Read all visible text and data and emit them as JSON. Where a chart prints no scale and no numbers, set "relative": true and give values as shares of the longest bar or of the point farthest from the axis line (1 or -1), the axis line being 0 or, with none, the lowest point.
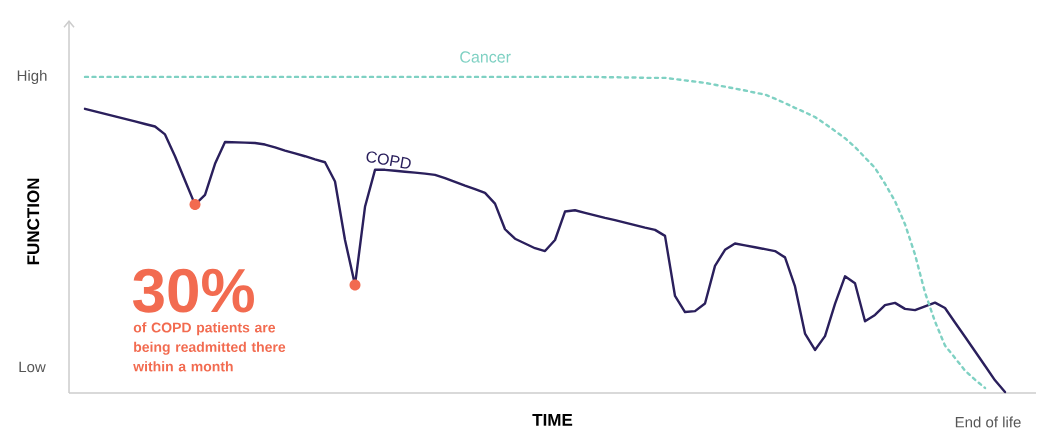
{
  "chart_data": {
    "type": "line",
    "relative": true,
    "xlabel": "TIME",
    "ylabel": "FUNCTION",
    "annotations": [
      "30%",
      "of COPD patients are being readmitted there within a month",
      "High",
      "Low",
      "End of life"
    ],
    "categories": [
      null,
      null,
      null,
      null,
      null,
      null,
      null,
      null,
      null,
      null,
      null,
      null,
      null,
      null,
      null,
      null,
      null,
      null,
      null,
      null,
      null,
      null,
      null,
      null,
      null,
      null,
      null,
      null,
      null,
      null,
      null,
      null,
      null,
      null,
      null,
      null,
      null,
      null,
      null,
      null,
      null,
      null,
      null,
      null,
      null,
      null,
      null,
      null,
      null,
      null,
      null,
      null,
      null,
      null,
      null,
      null,
      null,
      null,
      null,
      null,
      null,
      null,
      null,
      null,
      null,
      null,
      null,
      null,
      null,
      null,
      null,
      null,
      null,
      null,
      null,
      null,
      null,
      null,
      null,
      null,
      null,
      null,
      null,
      null,
      null,
      null,
      null,
      null,
      null,
      null,
      null,
      null,
      null
    ],
    "series": [
      {
        "name": "COPD",
        "color": "#2a1f5c",
        "line_style": "solid",
        "values": [
          0.899,
          0.891,
          0.883,
          0.875,
          0.867,
          0.859,
          0.851,
          0.843,
          0.818,
          0.749,
          0.672,
          0.596,
          0.627,
          0.725,
          0.794,
          0.793,
          0.792,
          0.791,
          0.786,
          0.777,
          0.767,
          0.758,
          0.749,
          0.739,
          0.73,
          0.669,
          0.484,
          0.342,
          0.589,
          0.706,
          0.706,
          0.703,
          0.7,
          0.697,
          0.694,
          0.69,
          0.68,
          0.668,
          0.656,
          0.645,
          0.633,
          0.599,
          0.518,
          0.488,
          0.473,
          0.458,
          0.449,
          0.484,
          0.574,
          0.578,
          0.57,
          0.562,
          0.554,
          0.547,
          0.539,
          0.531,
          0.523,
          0.516,
          0.497,
          0.307,
          0.256,
          0.259,
          0.283,
          0.402,
          0.453,
          0.473,
          0.467,
          0.461,
          0.455,
          0.449,
          0.429,
          0.337,
          0.188,
          0.136,
          0.18,
          0.282,
          0.369,
          0.347,
          0.227,
          0.247,
          0.278,
          0.285,
          0.266,
          0.262,
          0.274,
          0.286,
          0.269,
          0.223,
          0.178,
          0.132,
          0.086,
          0.04,
          0.003
        ]
      },
      {
        "name": "Cancer",
        "color": "#7fd1c3",
        "line_style": "dotted",
        "values": [
          1.0,
          1.0,
          1.0,
          1.0,
          1.0,
          1.0,
          1.0,
          1.0,
          1.0,
          1.0,
          1.0,
          1.0,
          1.0,
          1.0,
          1.0,
          1.0,
          1.0,
          1.0,
          1.0,
          1.0,
          1.0,
          1.0,
          1.0,
          1.0,
          1.0,
          1.0,
          1.0,
          1.0,
          1.0,
          1.0,
          1.0,
          1.0,
          1.0,
          1.0,
          1.0,
          1.0,
          1.0,
          1.0,
          1.0,
          1.0,
          1.0,
          1.0,
          1.0,
          1.0,
          1.0,
          1.0,
          1.0,
          1.0,
          1.0,
          1.0,
          1.0,
          1.0,
          0.999,
          0.999,
          0.998,
          0.998,
          0.997,
          0.997,
          0.997,
          0.993,
          0.989,
          0.985,
          0.981,
          0.975,
          0.969,
          0.963,
          0.957,
          0.95,
          0.944,
          0.931,
          0.917,
          0.902,
          0.888,
          0.873,
          0.852,
          0.829,
          0.806,
          0.778,
          0.745,
          0.712,
          0.662,
          0.607,
          0.534,
          0.438,
          0.318,
          0.226,
          0.15,
          0.111,
          0.071,
          0.042,
          0.016,
          null,
          null
        ]
      }
    ]
  }
}
